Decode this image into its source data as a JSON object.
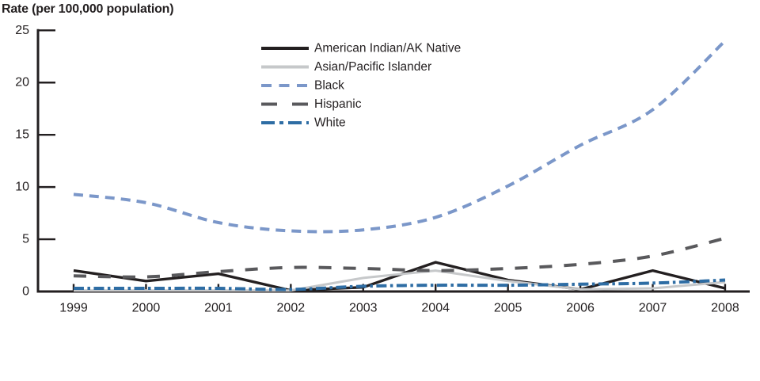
{
  "chart_data": {
    "type": "line",
    "title": "Rate (per 100,000 population)",
    "xlabel": "",
    "ylabel": "Rate (per 100,000 population)",
    "ylim": [
      0,
      25
    ],
    "yticks": [
      0,
      5,
      10,
      15,
      20,
      25
    ],
    "categories": [
      "1999",
      "2000",
      "2001",
      "2002",
      "2003",
      "2004",
      "2005",
      "2006",
      "2007",
      "2008"
    ],
    "grid": false,
    "legend_position": "top-center",
    "axis_color": "#231f20",
    "series": [
      {
        "name": "American Indian/AK Native",
        "color": "#231f20",
        "line_style": "solid",
        "smooth": false,
        "values": [
          2.0,
          1.0,
          1.7,
          0.1,
          0.4,
          2.8,
          1.1,
          0.2,
          2.0,
          0.3
        ]
      },
      {
        "name": "Asian/Pacific Islander",
        "color": "#c6c8ca",
        "line_style": "solid",
        "smooth": false,
        "values": [
          0.1,
          0.1,
          0.1,
          0.1,
          1.3,
          2.0,
          1.0,
          0.2,
          0.3,
          0.9
        ]
      },
      {
        "name": "Black",
        "color": "#7b97c9",
        "line_style": "dashed",
        "smooth": true,
        "values": [
          9.3,
          8.5,
          6.6,
          5.8,
          5.9,
          7.1,
          10.1,
          14.0,
          17.4,
          24.0
        ]
      },
      {
        "name": "Hispanic",
        "color": "#59595c",
        "line_style": "long-dashed",
        "smooth": true,
        "values": [
          1.5,
          1.4,
          1.9,
          2.3,
          2.2,
          2.0,
          2.2,
          2.6,
          3.4,
          5.1
        ]
      },
      {
        "name": "White",
        "color": "#2e6da4",
        "line_style": "dash-dot",
        "smooth": true,
        "values": [
          0.3,
          0.3,
          0.3,
          0.2,
          0.5,
          0.6,
          0.6,
          0.7,
          0.8,
          1.1
        ]
      }
    ]
  }
}
